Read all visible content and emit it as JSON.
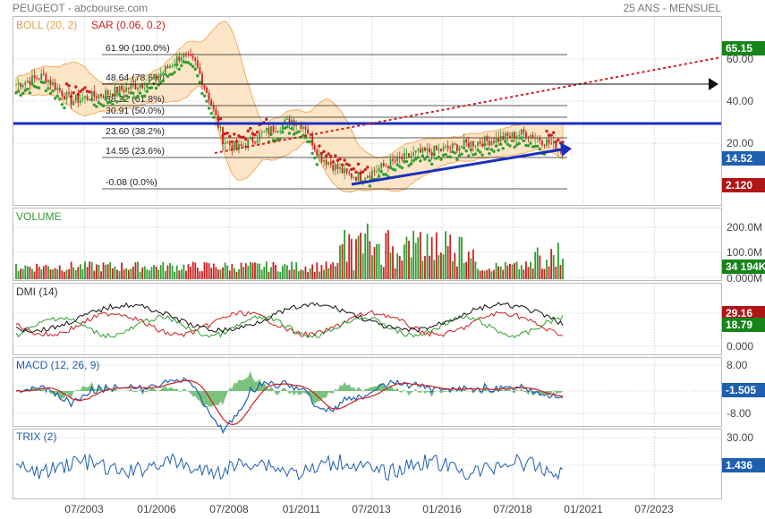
{
  "header": {
    "title": "PEUGEOT - abcbourse.com",
    "period": "25 ANS - MENSUEL"
  },
  "x_ticks": [
    "07/2003",
    "01/2006",
    "07/2008",
    "01/2011",
    "07/2013",
    "01/2016",
    "07/2018",
    "01/2021",
    "07/2023"
  ],
  "colors": {
    "grid": "#cccccc",
    "boll_fill": "#fde3c2",
    "boll_line": "#f2a24a",
    "up": "#2e9e2e",
    "down": "#cc1f1f",
    "trend": "#1a2fbf",
    "badge_green": "#17841a",
    "badge_blue": "#1e5fb0",
    "badge_red": "#b01515"
  },
  "chart_data": [
    {
      "name": "price",
      "type": "candlestick",
      "indicators": {
        "boll_label": "BOLL (20, 2)",
        "sar_label": "SAR (0.06, 0.2)"
      },
      "y_ticks": [
        "60.00",
        "40.00",
        "20.00"
      ],
      "fibonacci": [
        {
          "label": "61.90 (100.0%)"
        },
        {
          "label": "48.64 (78.6%)"
        },
        {
          "label": "38.22 (61.8%)"
        },
        {
          "label": "30.91 (50.0%)"
        },
        {
          "label": "23.60 (38.2%)"
        },
        {
          "label": "14.55 (23.6%)"
        },
        {
          "label": "-0.08 (0.0%)"
        }
      ],
      "badges": [
        {
          "value": "65.15",
          "color": "green"
        },
        {
          "value": "14.52",
          "color": "blue"
        },
        {
          "value": "2.120",
          "color": "red"
        }
      ]
    },
    {
      "name": "volume",
      "type": "bar",
      "title": "VOLUME",
      "y_ticks": [
        "200.0M",
        "100.0M",
        "0.000M"
      ],
      "badge": {
        "value": "34 194K",
        "color": "green"
      }
    },
    {
      "name": "dmi",
      "type": "line",
      "title": "DMI (14)",
      "y_ticks": [
        "0.000"
      ],
      "badges": [
        {
          "value": "29.16",
          "color": "red"
        },
        {
          "value": "18.79",
          "color": "green"
        }
      ]
    },
    {
      "name": "macd",
      "type": "line",
      "title": "MACD (12, 26, 9)",
      "y_ticks": [
        "8.00",
        "-8.00"
      ],
      "badge": {
        "value": "-1.505",
        "color": "blue"
      }
    },
    {
      "name": "trix",
      "type": "line",
      "title": "TRIX (2)",
      "y_ticks": [
        "30.00"
      ],
      "badge": {
        "value": "1.436",
        "color": "blue"
      }
    }
  ]
}
